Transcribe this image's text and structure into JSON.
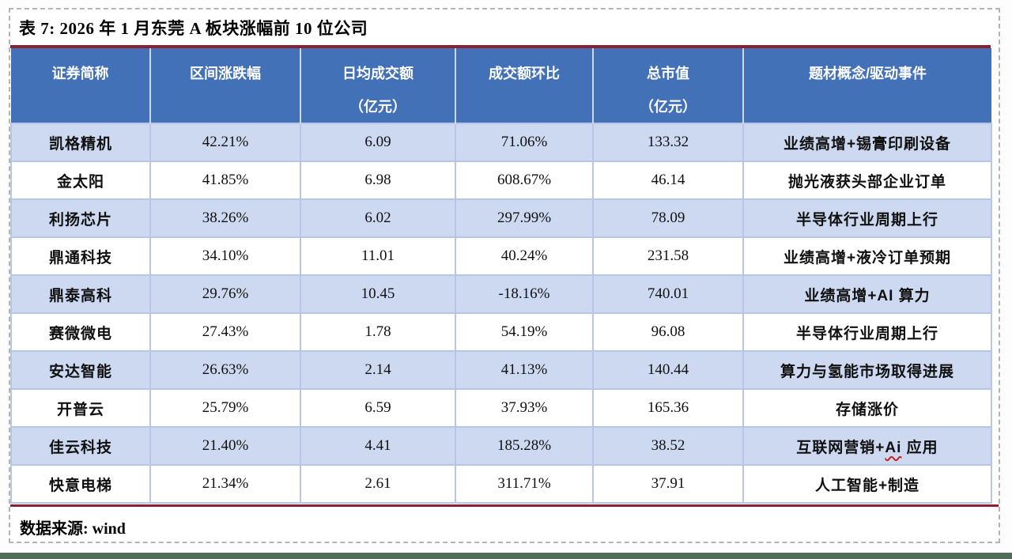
{
  "page": {
    "title": "表 7: 2026 年 1 月东莞 A 板块涨幅前 10 位公司",
    "source_label": "数据来源: wind"
  },
  "colors": {
    "header_bg": "#4271B8",
    "alt_row_bg": "#CDD9F0",
    "grid_line": "#B7C6E4",
    "rule_maroon": "#8C2033",
    "bottom_bar_green": "#4F6C58",
    "squiggle_red": "#CC2222"
  },
  "table": {
    "columns": [
      {
        "label": "证券简称",
        "sub": ""
      },
      {
        "label": "区间涨跌幅",
        "sub": ""
      },
      {
        "label": "日均成交额",
        "sub": "（亿元）"
      },
      {
        "label": "成交额环比",
        "sub": ""
      },
      {
        "label": "总市值",
        "sub": "（亿元）"
      },
      {
        "label": "题材概念/驱动事件",
        "sub": ""
      }
    ],
    "rows": [
      {
        "name": "凯格精机",
        "change": "42.21%",
        "avg_turnover": "6.09",
        "turnover_mom": "71.06%",
        "market_cap": "133.32",
        "theme": "业绩高增+锡膏印刷设备"
      },
      {
        "name": "金太阳",
        "change": "41.85%",
        "avg_turnover": "6.98",
        "turnover_mom": "608.67%",
        "market_cap": "46.14",
        "theme": "抛光液获头部企业订单"
      },
      {
        "name": "利扬芯片",
        "change": "38.26%",
        "avg_turnover": "6.02",
        "turnover_mom": "297.99%",
        "market_cap": "78.09",
        "theme": "半导体行业周期上行"
      },
      {
        "name": "鼎通科技",
        "change": "34.10%",
        "avg_turnover": "11.01",
        "turnover_mom": "40.24%",
        "market_cap": "231.58",
        "theme": "业绩高增+液冷订单预期"
      },
      {
        "name": "鼎泰高科",
        "change": "29.76%",
        "avg_turnover": "10.45",
        "turnover_mom": "-18.16%",
        "market_cap": "740.01",
        "theme": "业绩高增+AI 算力"
      },
      {
        "name": "赛微微电",
        "change": "27.43%",
        "avg_turnover": "1.78",
        "turnover_mom": "54.19%",
        "market_cap": "96.08",
        "theme": "半导体行业周期上行"
      },
      {
        "name": "安达智能",
        "change": "26.63%",
        "avg_turnover": "2.14",
        "turnover_mom": "41.13%",
        "market_cap": "140.44",
        "theme": "算力与氢能市场取得进展"
      },
      {
        "name": "开普云",
        "change": "25.79%",
        "avg_turnover": "6.59",
        "turnover_mom": "37.93%",
        "market_cap": "165.36",
        "theme": "存储涨价"
      },
      {
        "name": "佳云科技",
        "change": "21.40%",
        "avg_turnover": "4.41",
        "turnover_mom": "185.28%",
        "market_cap": "38.52",
        "theme": "互联网营销+Ai 应用",
        "theme_wavy_substring": "Ai"
      },
      {
        "name": "快意电梯",
        "change": "21.34%",
        "avg_turnover": "2.61",
        "turnover_mom": "311.71%",
        "market_cap": "37.91",
        "theme": "人工智能+制造"
      }
    ]
  }
}
